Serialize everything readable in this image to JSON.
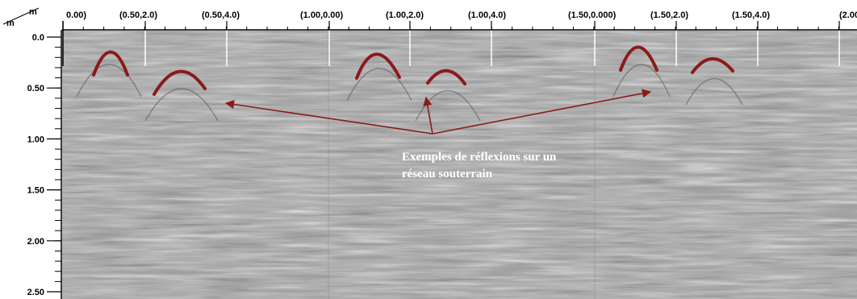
{
  "units": {
    "horizontal": "m",
    "vertical": "m"
  },
  "x_tick_labels": [
    "0.00)",
    "(0.50,2.0)",
    "(0.50,4.0)",
    "(1.00,0.00)",
    "(1.00,2.0)",
    "(1.00,4.0)",
    "(1.50,0.000)",
    "(1.50,2.0)",
    "(1.50,4.0)",
    "(2.00"
  ],
  "y_axis": {
    "labels": [
      "0.0",
      "0.50",
      "1.00",
      "1.50",
      "2.00",
      "2.50"
    ]
  },
  "annotation": {
    "line1": "Exemples de réflexions sur un",
    "line2": "réseau souterrain"
  },
  "colors": {
    "hyperbola": "#8b1a1a",
    "arrow": "#8b1a1a",
    "annotation_text": "#ffffff",
    "background_radar": "#9c9c9c"
  }
}
